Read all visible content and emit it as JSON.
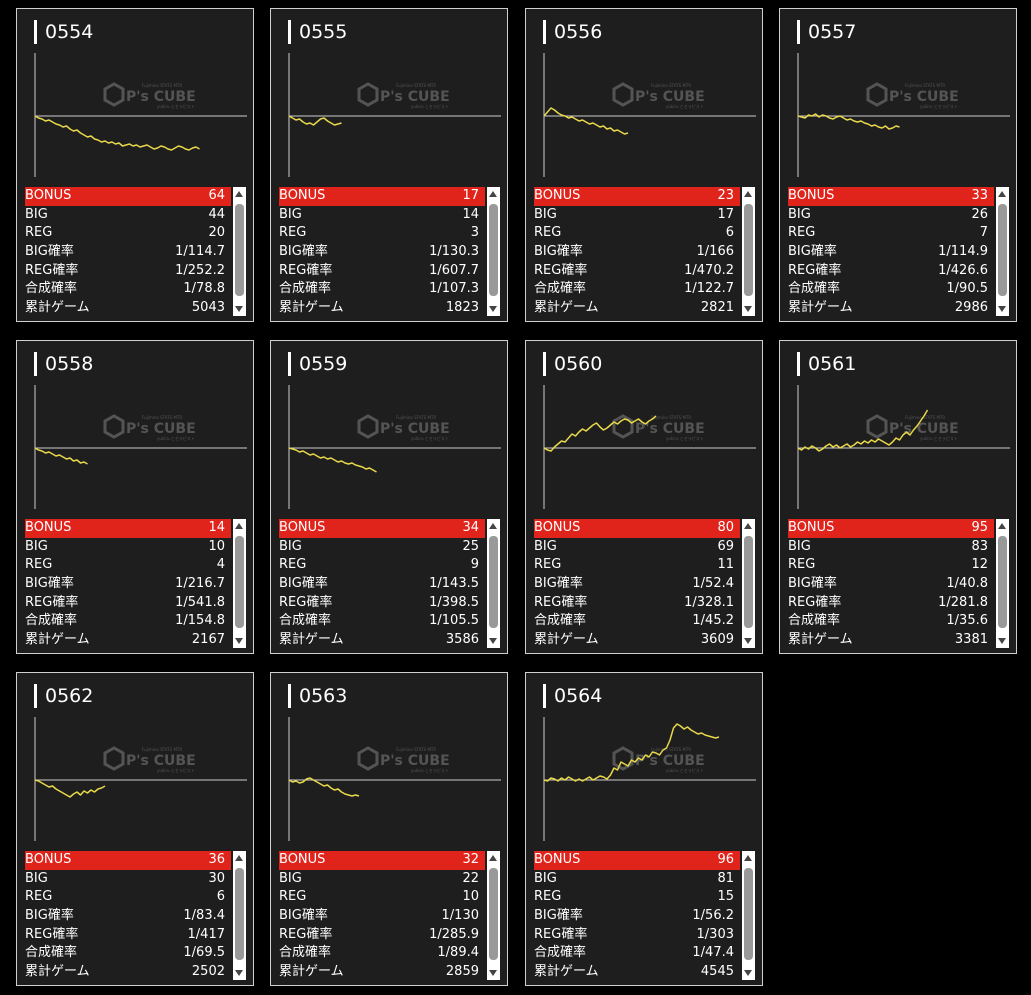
{
  "labels": {
    "bonus": "BONUS",
    "big": "BIG",
    "reg": "REG",
    "big_rate": "BIG確率",
    "reg_rate": "REG確率",
    "combined_rate": "合成確率",
    "total_games": "累計ゲーム"
  },
  "watermark": {
    "brand": "P's CUBE",
    "tagline_top": "Fujimino STATS MTR",
    "tagline_bottom": "yukiru とセラピスト"
  },
  "colors": {
    "line": "#e8d84a",
    "bonus_bg": "#e0231b",
    "card_bg": "#1e1e1e"
  },
  "machines": [
    {
      "id": "0554",
      "bonus": "64",
      "big": "44",
      "reg": "20",
      "big_rate": "1/114.7",
      "reg_rate": "1/252.2",
      "combined_rate": "1/78.8",
      "total_games": "5043",
      "trend": [
        0,
        -2,
        -3,
        -5,
        -4,
        -6,
        -8,
        -9,
        -11,
        -10,
        -13,
        -15,
        -14,
        -17,
        -19,
        -21,
        -20,
        -23,
        -24,
        -26,
        -25,
        -27,
        -26,
        -28,
        -27,
        -30,
        -29,
        -28,
        -30,
        -29,
        -31,
        -30,
        -29,
        -31,
        -33,
        -32,
        -30,
        -31,
        -33,
        -34,
        -32,
        -30,
        -31,
        -33,
        -34,
        -32,
        -31,
        -33
      ]
    },
    {
      "id": "0555",
      "bonus": "17",
      "big": "14",
      "reg": "3",
      "big_rate": "1/130.3",
      "reg_rate": "1/607.7",
      "combined_rate": "1/107.3",
      "total_games": "1823",
      "trend": [
        0,
        -2,
        -4,
        -3,
        -6,
        -8,
        -7,
        -9,
        -6,
        -3,
        -2,
        -5,
        -7,
        -9,
        -8,
        -7
      ]
    },
    {
      "id": "0556",
      "bonus": "23",
      "big": "17",
      "reg": "6",
      "big_rate": "1/166",
      "reg_rate": "1/470.2",
      "combined_rate": "1/122.7",
      "total_games": "2821",
      "trend": [
        0,
        4,
        8,
        6,
        3,
        1,
        0,
        -2,
        -1,
        -3,
        -5,
        -4,
        -6,
        -8,
        -7,
        -9,
        -11,
        -10,
        -13,
        -12,
        -15,
        -14,
        -16,
        -18,
        -17
      ]
    },
    {
      "id": "0557",
      "bonus": "33",
      "big": "26",
      "reg": "7",
      "big_rate": "1/114.9",
      "reg_rate": "1/426.6",
      "combined_rate": "1/90.5",
      "total_games": "2986",
      "trend": [
        0,
        -1,
        -2,
        1,
        0,
        2,
        -1,
        1,
        0,
        -2,
        -3,
        -1,
        0,
        -2,
        -4,
        -3,
        -5,
        -6,
        -5,
        -7,
        -8,
        -10,
        -9,
        -11,
        -12,
        -10,
        -13,
        -12,
        -10,
        -11
      ]
    },
    {
      "id": "0558",
      "bonus": "14",
      "big": "10",
      "reg": "4",
      "big_rate": "1/216.7",
      "reg_rate": "1/541.8",
      "combined_rate": "1/154.8",
      "total_games": "2167",
      "trend": [
        0,
        -2,
        -3,
        -5,
        -4,
        -6,
        -8,
        -7,
        -9,
        -11,
        -10,
        -13,
        -12,
        -15,
        -14,
        -16
      ]
    },
    {
      "id": "0559",
      "bonus": "34",
      "big": "25",
      "reg": "9",
      "big_rate": "1/143.5",
      "reg_rate": "1/398.5",
      "combined_rate": "1/105.5",
      "total_games": "3586",
      "trend": [
        0,
        -1,
        -2,
        -4,
        -3,
        -5,
        -7,
        -6,
        -8,
        -10,
        -9,
        -11,
        -10,
        -12,
        -14,
        -13,
        -15,
        -16,
        -15,
        -17,
        -18,
        -19,
        -21,
        -20,
        -22,
        -24
      ]
    },
    {
      "id": "0560",
      "bonus": "80",
      "big": "69",
      "reg": "11",
      "big_rate": "1/52.4",
      "reg_rate": "1/328.1",
      "combined_rate": "1/45.2",
      "total_games": "3609",
      "trend": [
        0,
        -2,
        -3,
        1,
        4,
        7,
        6,
        10,
        14,
        12,
        16,
        19,
        17,
        20,
        23,
        25,
        21,
        18,
        20,
        23,
        26,
        24,
        27,
        29,
        28,
        25,
        27,
        29,
        26,
        24,
        27,
        29,
        32
      ]
    },
    {
      "id": "0561",
      "bonus": "95",
      "big": "83",
      "reg": "12",
      "big_rate": "1/40.8",
      "reg_rate": "1/281.8",
      "combined_rate": "1/35.6",
      "total_games": "3381",
      "trend": [
        0,
        -2,
        1,
        -1,
        2,
        0,
        -3,
        -1,
        2,
        4,
        1,
        3,
        0,
        2,
        4,
        1,
        3,
        6,
        4,
        7,
        5,
        8,
        6,
        9,
        7,
        5,
        3,
        6,
        10,
        8,
        13,
        16,
        13,
        18,
        22,
        27,
        32,
        38
      ]
    },
    {
      "id": "0562",
      "bonus": "36",
      "big": "30",
      "reg": "6",
      "big_rate": "1/83.4",
      "reg_rate": "1/417",
      "combined_rate": "1/69.5",
      "total_games": "2502",
      "trend": [
        0,
        -1,
        -3,
        -5,
        -7,
        -6,
        -9,
        -11,
        -13,
        -15,
        -17,
        -14,
        -12,
        -15,
        -11,
        -13,
        -10,
        -12,
        -9,
        -8,
        -6
      ]
    },
    {
      "id": "0563",
      "bonus": "32",
      "big": "22",
      "reg": "10",
      "big_rate": "1/130",
      "reg_rate": "1/285.9",
      "combined_rate": "1/89.4",
      "total_games": "2859",
      "trend": [
        0,
        -2,
        -1,
        -3,
        -2,
        1,
        2,
        0,
        -2,
        -4,
        -6,
        -5,
        -8,
        -10,
        -9,
        -12,
        -14,
        -15,
        -16,
        -15,
        -16
      ]
    },
    {
      "id": "0564",
      "bonus": "96",
      "big": "81",
      "reg": "15",
      "big_rate": "1/56.2",
      "reg_rate": "1/303",
      "combined_rate": "1/47.4",
      "total_games": "4545",
      "trend": [
        0,
        -1,
        2,
        1,
        -1,
        2,
        0,
        3,
        1,
        -1,
        1,
        -1,
        1,
        3,
        0,
        2,
        4,
        3,
        1,
        5,
        12,
        10,
        18,
        16,
        14,
        20,
        18,
        22,
        20,
        25,
        23,
        28,
        27,
        25,
        30,
        32,
        40,
        52,
        56,
        54,
        51,
        53,
        50,
        48,
        46,
        47,
        45,
        44,
        43,
        42,
        43
      ]
    }
  ]
}
